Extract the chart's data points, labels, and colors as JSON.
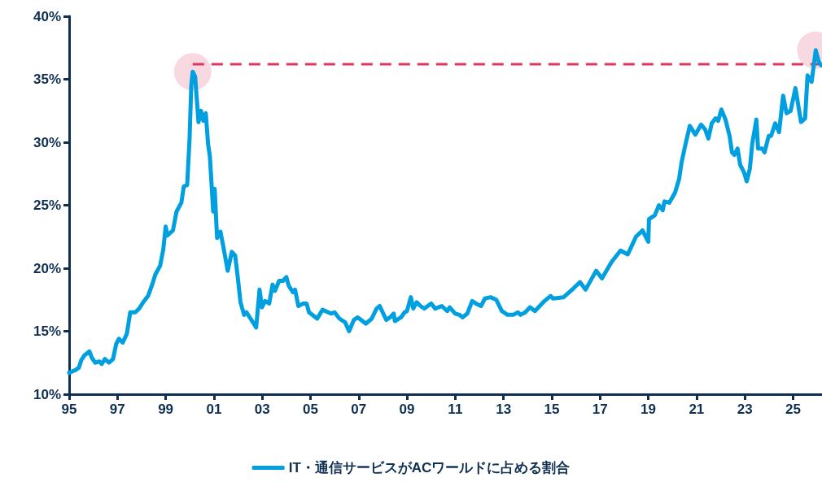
{
  "chart_data": {
    "type": "line",
    "legend": "bottom",
    "grid": false,
    "marker": "none",
    "line_style": "solid",
    "xlim": [
      1995,
      2026.2
    ],
    "xticks": [
      {
        "value": 1995,
        "label": "95"
      },
      {
        "value": 1997,
        "label": "97"
      },
      {
        "value": 1999,
        "label": "99"
      },
      {
        "value": 2001,
        "label": "01"
      },
      {
        "value": 2003,
        "label": "03"
      },
      {
        "value": 2005,
        "label": "05"
      },
      {
        "value": 2007,
        "label": "07"
      },
      {
        "value": 2009,
        "label": "09"
      },
      {
        "value": 2011,
        "label": "11"
      },
      {
        "value": 2013,
        "label": "13"
      },
      {
        "value": 2015,
        "label": "15"
      },
      {
        "value": 2017,
        "label": "17"
      },
      {
        "value": 2019,
        "label": "19"
      },
      {
        "value": 2021,
        "label": "21"
      },
      {
        "value": 2023,
        "label": "23"
      },
      {
        "value": 2025,
        "label": "25"
      }
    ],
    "ylim": [
      10,
      40
    ],
    "yticks": [
      {
        "value": 10,
        "label": "10%"
      },
      {
        "value": 15,
        "label": "15%"
      },
      {
        "value": 20,
        "label": "20%"
      },
      {
        "value": 25,
        "label": "25%"
      },
      {
        "value": 30,
        "label": "30%"
      },
      {
        "value": 35,
        "label": "35%"
      },
      {
        "value": 40,
        "label": "40%"
      }
    ],
    "ref_lines": [
      {
        "axis": "y",
        "value": 36.2,
        "color": "#e0365e",
        "line_style": "dashed"
      }
    ],
    "series": [
      {
        "name": "IT・通信サービスがACワールドに占める割合",
        "color": "#009fdf",
        "x": [
          1995.0,
          1995.24,
          1995.4,
          1995.5,
          1995.64,
          1995.84,
          1995.94,
          1996.08,
          1996.25,
          1996.35,
          1996.48,
          1996.65,
          1996.82,
          1996.95,
          1997.06,
          1997.22,
          1997.39,
          1997.53,
          1997.74,
          1997.9,
          1998.07,
          1998.27,
          1998.44,
          1998.57,
          1998.77,
          1998.9,
          1999.0,
          1999.07,
          1999.3,
          1999.45,
          1999.65,
          1999.75,
          1999.89,
          1999.99,
          2000.06,
          2000.12,
          2000.22,
          2000.36,
          2000.46,
          2000.56,
          2000.66,
          2000.76,
          2000.83,
          2000.97,
          2001.03,
          2001.13,
          2001.27,
          2001.4,
          2001.57,
          2001.74,
          2001.88,
          2001.98,
          2002.1,
          2002.25,
          2002.35,
          2002.75,
          2002.89,
          2002.99,
          2003.12,
          2003.29,
          2003.43,
          2003.53,
          2003.7,
          2003.86,
          2004.0,
          2004.1,
          2004.27,
          2004.36,
          2004.5,
          2004.7,
          2004.84,
          2004.94,
          2005.28,
          2005.5,
          2005.85,
          2006.0,
          2006.2,
          2006.44,
          2006.6,
          2006.8,
          2006.96,
          2007.3,
          2007.54,
          2007.74,
          2007.87,
          2008.14,
          2008.3,
          2008.45,
          2008.5,
          2008.75,
          2008.9,
          2009.0,
          2009.16,
          2009.26,
          2009.4,
          2009.56,
          2009.72,
          2010.0,
          2010.17,
          2010.44,
          2010.67,
          2010.77,
          2011.0,
          2011.18,
          2011.3,
          2011.5,
          2011.7,
          2011.86,
          2012.07,
          2012.23,
          2012.46,
          2012.7,
          2012.93,
          2013.17,
          2013.4,
          2013.6,
          2013.7,
          2013.9,
          2014.1,
          2014.3,
          2014.5,
          2014.7,
          2014.95,
          2015.05,
          2015.49,
          2015.9,
          2016.17,
          2016.4,
          2016.84,
          2017.08,
          2017.48,
          2017.85,
          2018.15,
          2018.32,
          2018.49,
          2018.76,
          2019.0,
          2019.03,
          2019.27,
          2019.44,
          2019.6,
          2019.67,
          2019.87,
          2020.11,
          2020.28,
          2020.38,
          2020.55,
          2020.72,
          2020.95,
          2021.19,
          2021.36,
          2021.49,
          2021.63,
          2021.79,
          2021.9,
          2022.03,
          2022.2,
          2022.37,
          2022.47,
          2022.57,
          2022.7,
          2022.81,
          2022.97,
          2023.08,
          2023.21,
          2023.31,
          2023.48,
          2023.55,
          2023.72,
          2023.82,
          2023.99,
          2024.09,
          2024.26,
          2024.42,
          2024.59,
          2024.73,
          2024.9,
          2025.1,
          2025.33,
          2025.5,
          2025.6,
          2025.77,
          2025.94,
          2026.08,
          2026.18
        ],
        "values": [
          11.7,
          11.9,
          12.1,
          12.7,
          13.1,
          13.4,
          12.9,
          12.5,
          12.6,
          12.4,
          12.8,
          12.5,
          12.8,
          14.0,
          14.4,
          14.1,
          14.8,
          16.5,
          16.5,
          16.8,
          17.3,
          17.8,
          18.7,
          19.5,
          20.2,
          21.5,
          23.3,
          22.6,
          23.0,
          24.5,
          25.2,
          26.5,
          26.6,
          30.3,
          34.5,
          35.6,
          35.2,
          31.6,
          32.5,
          31.7,
          32.3,
          29.8,
          28.9,
          24.5,
          26.3,
          22.4,
          22.9,
          21.6,
          19.8,
          21.3,
          21.0,
          19.4,
          17.3,
          16.3,
          16.5,
          15.3,
          18.3,
          16.9,
          17.4,
          17.2,
          18.7,
          18.2,
          19.0,
          19.0,
          19.3,
          18.6,
          18.1,
          18.3,
          17.0,
          17.2,
          17.2,
          16.5,
          16.0,
          16.7,
          16.4,
          16.5,
          16.0,
          15.7,
          15.0,
          15.9,
          16.1,
          15.6,
          16.0,
          16.8,
          17.0,
          15.9,
          16.1,
          16.4,
          15.8,
          16.1,
          16.5,
          16.6,
          17.7,
          16.8,
          17.3,
          17.0,
          16.8,
          17.2,
          16.8,
          17.0,
          16.6,
          16.9,
          16.4,
          16.3,
          16.1,
          16.4,
          17.4,
          17.2,
          17.0,
          17.6,
          17.7,
          17.5,
          16.6,
          16.3,
          16.3,
          16.5,
          16.3,
          16.5,
          16.9,
          16.6,
          17.0,
          17.4,
          17.8,
          17.6,
          17.7,
          18.4,
          18.9,
          18.3,
          19.8,
          19.2,
          20.5,
          21.4,
          21.1,
          21.8,
          22.5,
          23.0,
          22.1,
          23.9,
          24.2,
          25.0,
          24.6,
          25.3,
          25.2,
          26.0,
          27.1,
          28.4,
          29.9,
          31.3,
          30.6,
          31.4,
          31.0,
          30.3,
          31.5,
          31.9,
          31.7,
          32.6,
          31.8,
          30.5,
          29.2,
          29.0,
          29.5,
          28.2,
          27.6,
          26.9,
          27.9,
          29.9,
          31.8,
          29.5,
          29.5,
          29.2,
          30.5,
          30.5,
          31.5,
          30.8,
          33.7,
          32.3,
          32.5,
          34.3,
          31.6,
          31.9,
          35.3,
          34.8,
          37.3,
          36.3,
          36.1
        ]
      }
    ]
  }
}
